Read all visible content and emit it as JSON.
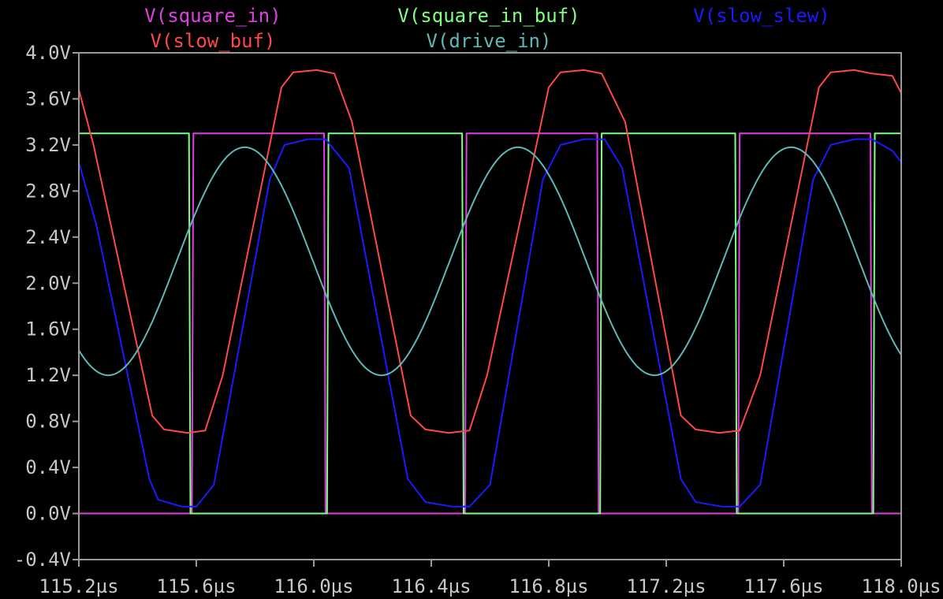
{
  "chart_data": {
    "type": "line",
    "title": "",
    "xlabel": "",
    "ylabel": "",
    "xlim": [
      115.2,
      118.0
    ],
    "ylim": [
      -0.4,
      4.0
    ],
    "x_unit": "µs",
    "y_unit": "V",
    "grid": false,
    "background": "#000000",
    "axis_color": "#9a9a9a",
    "x_ticks": [
      "115.2µs",
      "115.6µs",
      "116.0µs",
      "116.4µs",
      "116.8µs",
      "117.2µs",
      "117.6µs",
      "118.0µs"
    ],
    "x_tick_values": [
      115.2,
      115.6,
      116.0,
      116.4,
      116.8,
      117.2,
      117.6,
      118.0
    ],
    "y_ticks": [
      "4.0V",
      "3.6V",
      "3.2V",
      "2.8V",
      "2.4V",
      "2.0V",
      "1.6V",
      "1.2V",
      "0.8V",
      "0.4V",
      "0.0V",
      "-0.4V"
    ],
    "y_tick_values": [
      4.0,
      3.6,
      3.2,
      2.8,
      2.4,
      2.0,
      1.6,
      1.2,
      0.8,
      0.4,
      0.0,
      -0.4
    ],
    "legend_placement": "top",
    "series": [
      {
        "name": "V(square_in)",
        "color": "#e040e0",
        "x": [
          115.2,
          115.585,
          115.59,
          116.035,
          116.04,
          116.515,
          116.52,
          116.965,
          116.97,
          117.445,
          117.45,
          117.895,
          117.9,
          118.0
        ],
        "y": [
          0.0,
          0.0,
          3.3,
          3.3,
          0.0,
          0.0,
          3.3,
          3.3,
          0.0,
          0.0,
          3.3,
          3.3,
          0.0,
          0.0
        ]
      },
      {
        "name": "V(square_in_buf)",
        "color": "#80ff80",
        "x": [
          115.2,
          115.575,
          115.58,
          116.045,
          116.05,
          116.505,
          116.51,
          116.975,
          116.98,
          117.435,
          117.44,
          117.905,
          117.91,
          118.0
        ],
        "y": [
          3.3,
          3.3,
          0.0,
          0.0,
          3.3,
          3.3,
          0.0,
          0.0,
          3.3,
          3.3,
          0.0,
          0.0,
          3.3,
          3.3
        ]
      },
      {
        "name": "V(slow_slew)",
        "color": "#1a1aff",
        "x": [
          115.2,
          115.26,
          115.44,
          115.47,
          115.55,
          115.6,
          115.66,
          115.85,
          115.9,
          115.98,
          116.04,
          116.12,
          116.32,
          116.38,
          116.47,
          116.53,
          116.6,
          116.78,
          116.84,
          116.92,
          116.99,
          117.05,
          117.25,
          117.3,
          117.39,
          117.45,
          117.52,
          117.7,
          117.76,
          117.84,
          117.9,
          117.97,
          118.0
        ],
        "y": [
          3.05,
          2.5,
          0.3,
          0.12,
          0.06,
          0.06,
          0.25,
          2.9,
          3.2,
          3.25,
          3.25,
          3.0,
          0.3,
          0.1,
          0.06,
          0.06,
          0.25,
          2.9,
          3.2,
          3.25,
          3.25,
          3.0,
          0.3,
          0.1,
          0.06,
          0.06,
          0.25,
          2.9,
          3.2,
          3.25,
          3.25,
          3.15,
          3.05
        ]
      },
      {
        "name": "V(slow_buf)",
        "color": "#ff4848",
        "x": [
          115.2,
          115.25,
          115.45,
          115.49,
          115.57,
          115.63,
          115.69,
          115.89,
          115.93,
          116.01,
          116.07,
          116.13,
          116.33,
          116.38,
          116.46,
          116.53,
          116.59,
          116.8,
          116.84,
          116.92,
          116.98,
          117.06,
          117.25,
          117.3,
          117.38,
          117.45,
          117.52,
          117.72,
          117.76,
          117.84,
          117.9,
          117.97,
          118.0
        ],
        "y": [
          3.68,
          3.2,
          0.85,
          0.73,
          0.7,
          0.72,
          1.2,
          3.7,
          3.83,
          3.85,
          3.82,
          3.4,
          0.85,
          0.73,
          0.7,
          0.72,
          1.2,
          3.7,
          3.83,
          3.85,
          3.82,
          3.4,
          0.85,
          0.73,
          0.7,
          0.72,
          1.2,
          3.7,
          3.83,
          3.85,
          3.82,
          3.8,
          3.65
        ]
      },
      {
        "name": "V(drive_in)",
        "color": "#5fb8b8",
        "sine": {
          "offset": 2.19,
          "amplitude": 0.99,
          "period_us": 0.93,
          "min_at_us": 115.3
        },
        "x": [],
        "y": []
      }
    ]
  }
}
